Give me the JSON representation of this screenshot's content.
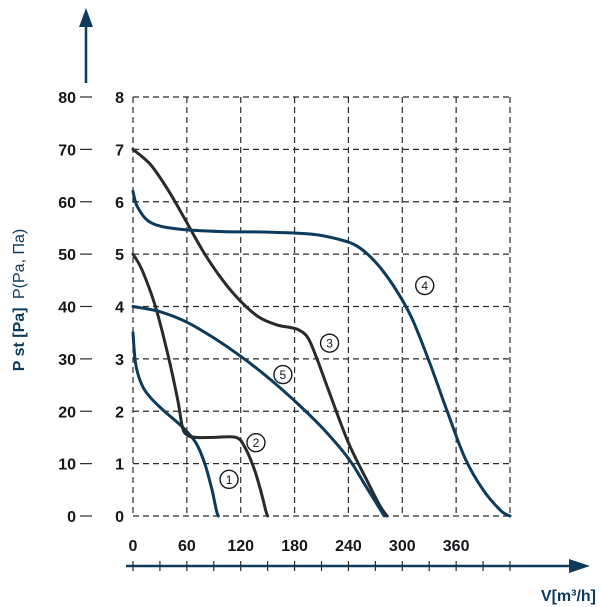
{
  "chart_data": {
    "type": "line",
    "title": "",
    "xlabel": "V[m³/h]",
    "ylabel_main": "P st [Pa]",
    "ylabel_alt": "P(Pa, Па)",
    "xlim": [
      0,
      420
    ],
    "x_ticks": [
      0,
      60,
      120,
      180,
      240,
      300,
      360
    ],
    "ylim": [
      0,
      80
    ],
    "y_ticks_outer": [
      0,
      10,
      20,
      30,
      40,
      50,
      60,
      70,
      80
    ],
    "y_ticks_inner": [
      0,
      1,
      2,
      3,
      4,
      5,
      6,
      7,
      8
    ],
    "grid": true,
    "legend": "none",
    "colors": {
      "navy": "#0e3b5c",
      "dark": "#2a2a2a",
      "axis": "#0e3b5c"
    },
    "series": [
      {
        "label": "1",
        "color": "#0e3b5c",
        "x": [
          0,
          3,
          10,
          20,
          35,
          55,
          70,
          80,
          88,
          93,
          95
        ],
        "y": [
          35,
          29,
          25,
          22.5,
          20,
          17,
          14,
          10,
          5,
          1,
          0
        ]
      },
      {
        "label": "2",
        "color": "#2a2a2a",
        "x": [
          0,
          10,
          25,
          40,
          50,
          55,
          60,
          70,
          90,
          115,
          125,
          135,
          142,
          148,
          150
        ],
        "y": [
          50,
          47,
          40,
          30,
          22,
          17,
          15.5,
          15,
          15,
          15,
          13,
          9,
          5,
          1,
          0
        ]
      },
      {
        "label": "3",
        "color": "#2a2a2a",
        "x": [
          0,
          20,
          40,
          60,
          80,
          100,
          120,
          140,
          160,
          175,
          185,
          195,
          205,
          220,
          240,
          260,
          275,
          283
        ],
        "y": [
          70,
          67,
          62,
          56,
          50,
          45,
          41,
          38,
          36.5,
          36,
          35.5,
          34,
          30,
          23,
          14,
          7,
          2,
          0
        ]
      },
      {
        "label": "4",
        "color": "#0e3b5c",
        "x": [
          0,
          5,
          20,
          50,
          100,
          150,
          200,
          230,
          250,
          270,
          290,
          310,
          330,
          350,
          370,
          390,
          410,
          420
        ],
        "y": [
          62,
          59,
          56,
          54.8,
          54.3,
          54.2,
          53.8,
          52.8,
          51.5,
          48.5,
          44,
          38,
          29.5,
          20,
          11,
          5,
          1,
          0
        ]
      },
      {
        "label": "5",
        "color": "#0e3b5c",
        "x": [
          0,
          30,
          60,
          90,
          120,
          150,
          180,
          210,
          240,
          260,
          280
        ],
        "y": [
          40,
          39,
          37,
          34,
          30.5,
          26.5,
          22,
          17,
          11,
          5.5,
          0
        ]
      }
    ],
    "annotations": [
      {
        "text": "1",
        "x": 107,
        "y": 7
      },
      {
        "text": "2",
        "x": 137,
        "y": 14
      },
      {
        "text": "3",
        "x": 219,
        "y": 33
      },
      {
        "text": "4",
        "x": 325,
        "y": 44
      },
      {
        "text": "5",
        "x": 167,
        "y": 27
      }
    ]
  }
}
